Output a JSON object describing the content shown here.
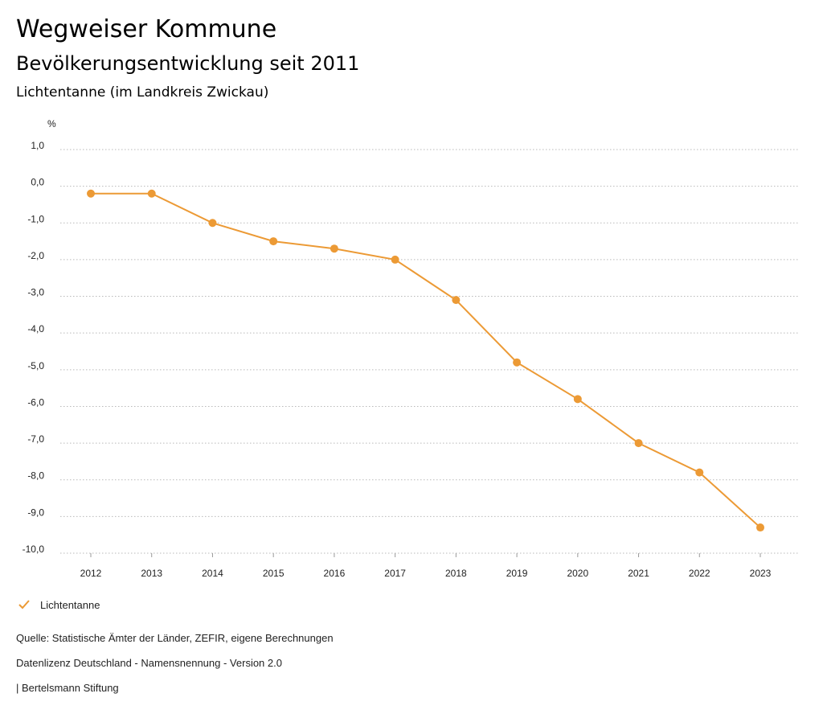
{
  "header": {
    "title": "Wegweiser Kommune",
    "subtitle": "Bevölkerungsentwicklung seit 2011",
    "region": "Lichtentanne (im Landkreis Zwickau)"
  },
  "chart_data": {
    "type": "line",
    "title": "Bevölkerungsentwicklung seit 2011",
    "ylabel": "%",
    "xlabel": "",
    "ylim": [
      -10,
      1
    ],
    "y_ticks": [
      1,
      0,
      -1,
      -2,
      -3,
      -4,
      -5,
      -6,
      -7,
      -8,
      -9,
      -10
    ],
    "y_tick_labels": [
      "1,0",
      "0,0",
      "-1,0",
      "-2,0",
      "-3,0",
      "-4,0",
      "-5,0",
      "-6,0",
      "-7,0",
      "-8,0",
      "-9,0",
      "-10,0"
    ],
    "categories": [
      "2012",
      "2013",
      "2014",
      "2015",
      "2016",
      "2017",
      "2018",
      "2019",
      "2020",
      "2021",
      "2022",
      "2023"
    ],
    "series": [
      {
        "name": "Lichtentanne",
        "color": "#ec9a35",
        "values": [
          -0.2,
          -0.2,
          -1.0,
          -1.5,
          -1.7,
          -2.0,
          -3.1,
          -4.8,
          -5.8,
          -7.0,
          -7.8,
          -9.3
        ]
      }
    ],
    "grid": true,
    "legend_position": "bottom-left"
  },
  "legend": {
    "label": "Lichtentanne"
  },
  "footer": {
    "source": "Quelle: Statistische Ämter der Länder, ZEFIR, eigene Berechnungen",
    "license": "Datenlizenz Deutschland - Namensnennung - Version 2.0",
    "publisher": "| Bertelsmann Stiftung"
  }
}
